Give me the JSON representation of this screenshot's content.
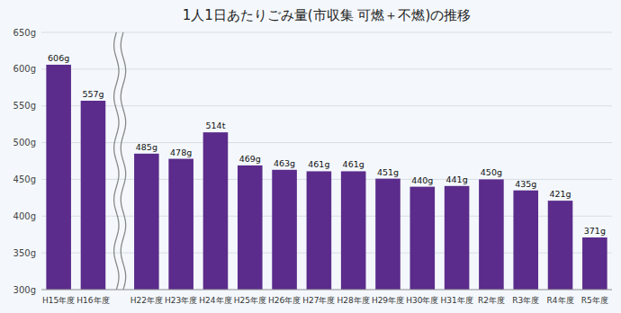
{
  "chart_data": {
    "type": "bar",
    "title": "1人1日あたりごみ量(市収集 可燃＋不燃)の推移",
    "categories": [
      "H15年度",
      "H16年度",
      "H22年度",
      "H23年度",
      "H24年度",
      "H25年度",
      "H26年度",
      "H27年度",
      "H28年度",
      "H29年度",
      "H30年度",
      "H31年度",
      "R2年度",
      "R3年度",
      "R4年度",
      "R5年度"
    ],
    "values": [
      606,
      557,
      485,
      478,
      514,
      469,
      463,
      461,
      461,
      451,
      440,
      441,
      450,
      435,
      421,
      371
    ],
    "value_labels": [
      "606g",
      "557g",
      "485g",
      "478g",
      "514t",
      "469g",
      "463g",
      "461g",
      "461g",
      "451g",
      "440g",
      "441g",
      "450g",
      "435g",
      "421g",
      "371g"
    ],
    "color": "#5B2C8B",
    "ylim": [
      300,
      650
    ],
    "yticks": [
      {
        "value": 300,
        "label": "300g"
      },
      {
        "value": 350,
        "label": "350g"
      },
      {
        "value": 400,
        "label": "400g"
      },
      {
        "value": 450,
        "label": "450g"
      },
      {
        "value": 500,
        "label": "500g"
      },
      {
        "value": 550,
        "label": "550g"
      },
      {
        "value": 600,
        "label": "600g"
      },
      {
        "value": 650,
        "label": "650g"
      }
    ],
    "grid": true,
    "data_labels": true
  }
}
